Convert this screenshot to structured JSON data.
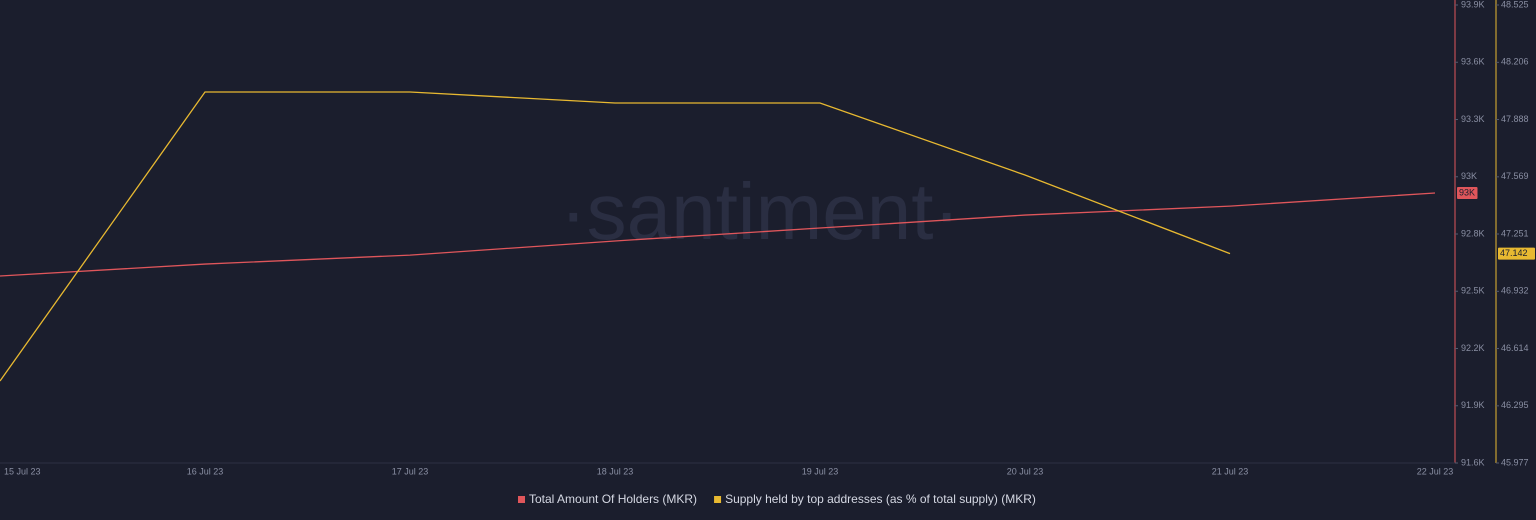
{
  "chart_data": {
    "type": "line",
    "watermark": "·santiment·",
    "categories": [
      "15 Jul 23",
      "16 Jul 23",
      "17 Jul 23",
      "18 Jul 23",
      "19 Jul 23",
      "20 Jul 23",
      "21 Jul 23",
      "22 Jul 23"
    ],
    "series": [
      {
        "name": "Total Amount Of Holders (MKR)",
        "color": "#e0565b",
        "axis": "y",
        "values": [
          92539,
          92599,
          92644,
          92715,
          92780,
          92845,
          92890,
          92956
        ],
        "value_labels": [
          null,
          null,
          null,
          null,
          null,
          null,
          null,
          "93K"
        ]
      },
      {
        "name": "Supply held by top addresses (as % of total supply) (MKR)",
        "color": "#e8b931",
        "axis": "y2",
        "values": [
          46.433,
          48.041,
          48.041,
          47.98,
          47.98,
          47.579,
          47.142,
          null
        ],
        "value_labels": [
          null,
          null,
          null,
          null,
          null,
          null,
          "47.142",
          null
        ]
      }
    ],
    "ylim": [
      91600,
      93900
    ],
    "yticks": [
      {
        "value": 91600,
        "label": "91.6K"
      },
      {
        "value": 91887.5,
        "label": "91.9K"
      },
      {
        "value": 92175,
        "label": "92.2K"
      },
      {
        "value": 92462.5,
        "label": "92.5K"
      },
      {
        "value": 92750,
        "label": "92.8K"
      },
      {
        "value": 93037.5,
        "label": "93K"
      },
      {
        "value": 93325,
        "label": "93.3K"
      },
      {
        "value": 93612.5,
        "label": "93.6K"
      },
      {
        "value": 93900,
        "label": "93.9K"
      }
    ],
    "y2lim": [
      45.977,
      48.525
    ],
    "y2ticks": [
      45.977,
      46.295,
      46.614,
      46.932,
      47.251,
      47.569,
      47.888,
      48.206,
      48.525
    ],
    "grid": false
  }
}
